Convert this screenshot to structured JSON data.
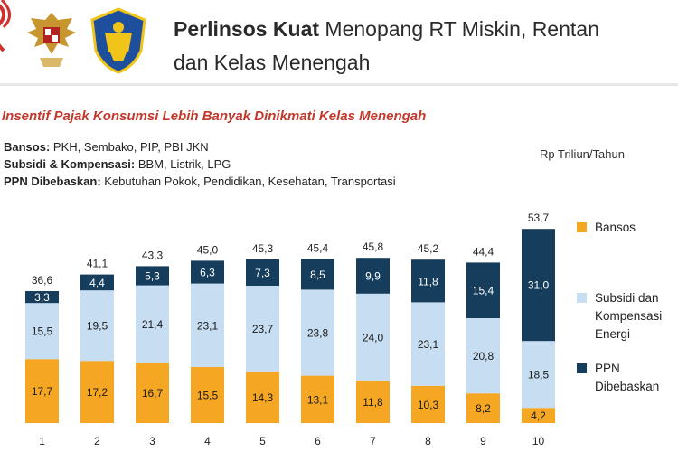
{
  "header": {
    "title_bold": "Perlinsos Kuat",
    "title_rest": " Menopang RT Miskin, Rentan",
    "title_line2": "dan Kelas Menengah"
  },
  "subtitle": "Insentif Pajak Konsumsi Lebih Banyak Dinikmati Kelas Menengah",
  "definitions": [
    {
      "term": "Bansos:",
      "desc": " PKH, Sembako, PIP, PBI JKN"
    },
    {
      "term": "Subsidi & Kompensasi:",
      "desc": " BBM, Listrik, LPG"
    },
    {
      "term": "PPN Dibebaskan:",
      "desc": " Kebutuhan Pokok, Pendidikan, Kesehatan, Transportasi"
    }
  ],
  "unit": "Rp Triliun/Tahun",
  "colors": {
    "bansos": "#f5a623",
    "subsidi": "#c6ddf2",
    "ppn": "#163d5c",
    "accent_red": "#c0392b"
  },
  "legend": {
    "bansos": "Bansos",
    "subsidi": [
      "Subsidi dan",
      "Kompensasi",
      "Energi"
    ],
    "ppn": [
      "PPN",
      "Dibebaskan"
    ]
  },
  "chart_data": {
    "type": "bar",
    "stacked": true,
    "categories": [
      "1",
      "2",
      "3",
      "4",
      "5",
      "6",
      "7",
      "8",
      "9",
      "10"
    ],
    "series": [
      {
        "name": "Bansos",
        "values": [
          17.7,
          17.2,
          16.7,
          15.5,
          14.3,
          13.1,
          11.8,
          10.3,
          8.2,
          4.2
        ]
      },
      {
        "name": "Subsidi dan Kompensasi Energi",
        "values": [
          15.5,
          19.5,
          21.4,
          23.1,
          23.7,
          23.8,
          24.0,
          23.1,
          20.8,
          18.5
        ]
      },
      {
        "name": "PPN Dibebaskan",
        "values": [
          3.3,
          4.4,
          5.3,
          6.3,
          7.3,
          8.5,
          9.9,
          11.8,
          15.4,
          31.0
        ]
      }
    ],
    "totals": [
      36.6,
      41.1,
      43.3,
      45.0,
      45.3,
      45.4,
      45.8,
      45.2,
      44.4,
      53.7
    ],
    "ylim": [
      0,
      55
    ],
    "legend_position": "right"
  }
}
